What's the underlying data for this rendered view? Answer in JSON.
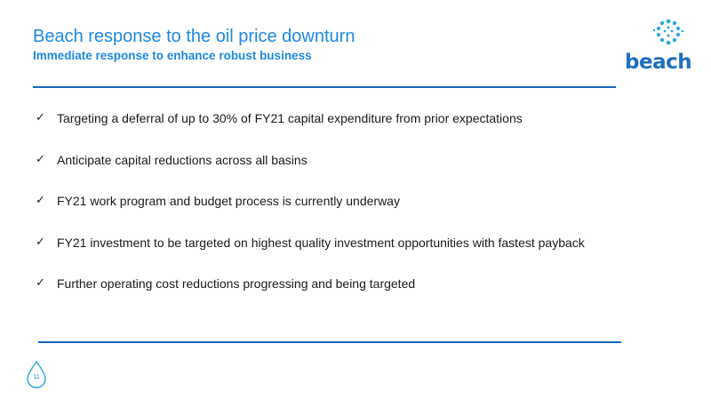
{
  "slide": {
    "title": "Beach response to the oil price downturn",
    "subtitle": "Immediate response to enhance robust business",
    "page_number": "11"
  },
  "logo": {
    "wordmark": "beach",
    "icon": "beach-sun-droplets-icon"
  },
  "bullets": [
    {
      "icon": "checkmark-icon",
      "text": "Targeting a deferral of up to 30% of FY21 capital expenditure from prior expectations"
    },
    {
      "icon": "checkmark-icon",
      "text": "Anticipate capital reductions across all basins"
    },
    {
      "icon": "checkmark-icon",
      "text": "FY21 work program and budget process is currently underway"
    },
    {
      "icon": "checkmark-icon",
      "text": "FY21 investment to be targeted on highest quality investment opportunities with fastest payback"
    },
    {
      "icon": "checkmark-icon",
      "text": "Further operating cost reductions progressing and being targeted"
    }
  ],
  "colors": {
    "accent": "#1e88e5",
    "rule": "#1565c0",
    "logo": "#1e6fc0",
    "text": "#1a1a1a"
  }
}
